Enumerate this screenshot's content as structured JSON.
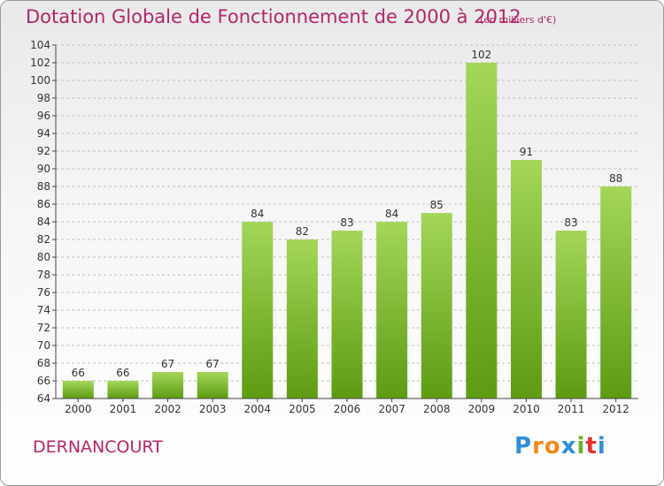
{
  "title": "Dotation Globale de Fonctionnement de 2000 à 2012",
  "unit_note": "(en milliers d'€)",
  "commune": "DERNANCOURT",
  "logo": {
    "letters": [
      "P",
      "r",
      "o",
      "x",
      "i",
      "t",
      "i"
    ],
    "colors": [
      "#2f8fd8",
      "#f08a1c",
      "#f08a1c",
      "#2f8fd8",
      "#6ab42d",
      "#e8312f",
      "#2f8fd8"
    ]
  },
  "colors": {
    "bar_light": "#a4d65a",
    "bar_dark": "#5d9b12",
    "axis": "#444444",
    "grid": "#bdbdbd",
    "text": "#333333"
  },
  "chart_data": {
    "type": "bar",
    "categories": [
      "2000",
      "2001",
      "2002",
      "2003",
      "2004",
      "2005",
      "2006",
      "2007",
      "2008",
      "2009",
      "2010",
      "2011",
      "2012"
    ],
    "values": [
      66,
      66,
      67,
      67,
      84,
      82,
      83,
      84,
      85,
      102,
      91,
      83,
      88
    ],
    "ylim": [
      64,
      104
    ],
    "yticks": [
      64,
      66,
      68,
      70,
      72,
      74,
      76,
      78,
      80,
      82,
      84,
      86,
      88,
      90,
      92,
      94,
      96,
      98,
      100,
      102,
      104
    ],
    "grid": true,
    "data_labels": true
  }
}
